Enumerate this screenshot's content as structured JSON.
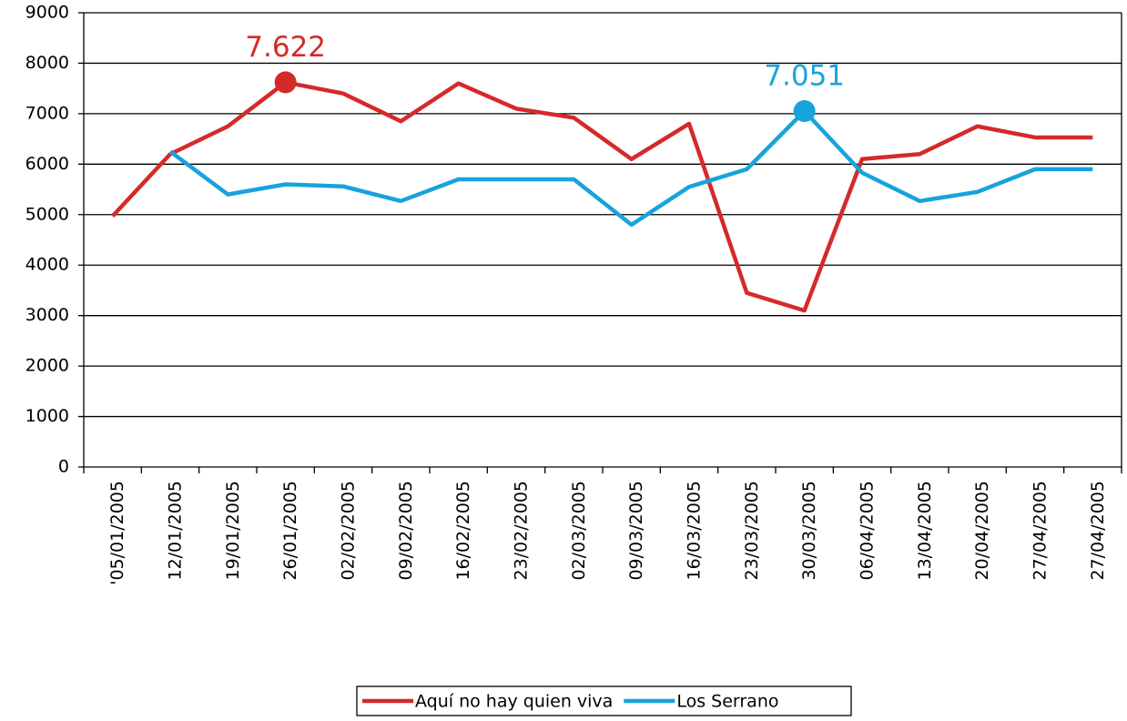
{
  "chart_data": {
    "type": "line",
    "categories": [
      "'05/01/2005",
      "12/01/2005",
      "19/01/2005",
      "26/01/2005",
      "02/02/2005",
      "09/02/2005",
      "16/02/2005",
      "23/02/2005",
      "02/03/2005",
      "09/03/2005",
      "16/03/2005",
      "23/03/2005",
      "30/03/2005",
      "06/04/2005",
      "13/04/2005",
      "20/04/2005",
      "27/04/2005",
      "27/04/2005"
    ],
    "series": [
      {
        "name": "Aquí no hay quien viva",
        "color": "#d42a2a",
        "values": [
          4970,
          6200,
          6750,
          7622,
          7400,
          6850,
          7600,
          7100,
          6920,
          6100,
          6800,
          3450,
          3100,
          6100,
          6200,
          6750,
          6530,
          6530
        ],
        "value_labels": [
          null,
          null,
          null,
          "7.622",
          null,
          null,
          null,
          null,
          null,
          null,
          null,
          null,
          null,
          null,
          null,
          null,
          null,
          null
        ]
      },
      {
        "name": "Los Serrano",
        "color": "#17a3dc",
        "values": [
          null,
          6250,
          5400,
          5600,
          5560,
          5270,
          5700,
          5700,
          5700,
          4800,
          5550,
          5900,
          7051,
          5830,
          5270,
          5450,
          5900,
          5900
        ],
        "value_labels": [
          null,
          null,
          null,
          null,
          null,
          null,
          null,
          null,
          null,
          null,
          null,
          null,
          "7.051",
          null,
          null,
          null,
          null,
          null
        ]
      }
    ],
    "ylim": [
      0,
      9000
    ],
    "yticks": [
      0,
      1000,
      2000,
      3000,
      4000,
      5000,
      6000,
      7000,
      8000,
      9000
    ],
    "grid": true,
    "legend": "bottom"
  }
}
